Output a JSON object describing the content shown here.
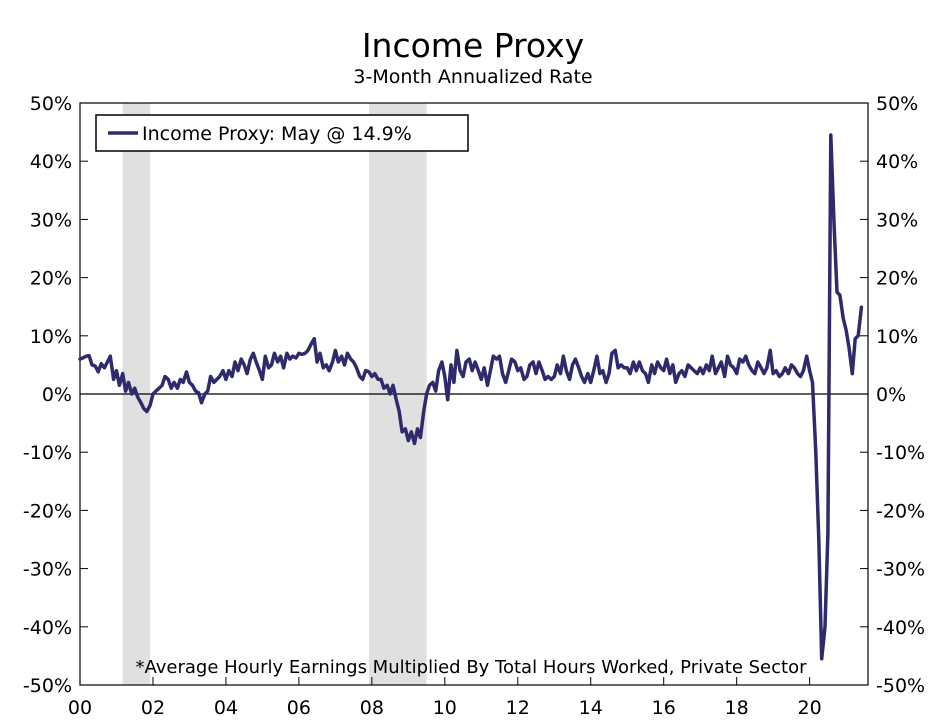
{
  "chart_data": {
    "type": "line",
    "title": "Income Proxy",
    "subtitle": "3-Month Annualized Rate",
    "footnote": "*Average Hourly Earnings Multiplied By Total Hours Worked, Private Sector",
    "legend": {
      "label": "Income Proxy: May @ 14.9%",
      "placement": "top-left"
    },
    "colors": {
      "line": "#2e2a6b",
      "recession": "#e0e0e0",
      "zero_line": "#000000"
    },
    "xlim": [
      2000,
      2021.6
    ],
    "ylim": [
      -50,
      50
    ],
    "grid": false,
    "x_ticks": [
      {
        "value": 2000,
        "label": "00"
      },
      {
        "value": 2002,
        "label": "02"
      },
      {
        "value": 2004,
        "label": "04"
      },
      {
        "value": 2006,
        "label": "06"
      },
      {
        "value": 2008,
        "label": "08"
      },
      {
        "value": 2010,
        "label": "10"
      },
      {
        "value": 2012,
        "label": "12"
      },
      {
        "value": 2014,
        "label": "14"
      },
      {
        "value": 2016,
        "label": "16"
      },
      {
        "value": 2018,
        "label": "18"
      },
      {
        "value": 2020,
        "label": "20"
      }
    ],
    "y_ticks_left": [
      {
        "value": 50,
        "label": "50%"
      },
      {
        "value": 40,
        "label": "40%"
      },
      {
        "value": 30,
        "label": "30%"
      },
      {
        "value": 20,
        "label": "20%"
      },
      {
        "value": 10,
        "label": "10%"
      },
      {
        "value": 0,
        "label": "0%"
      },
      {
        "value": -10,
        "label": "-10%"
      },
      {
        "value": -20,
        "label": "-20%"
      },
      {
        "value": -30,
        "label": "-30%"
      },
      {
        "value": -40,
        "label": "-40%"
      },
      {
        "value": -50,
        "label": "-50%"
      }
    ],
    "y_ticks_right": [
      {
        "value": 50,
        "label": "50%"
      },
      {
        "value": 40,
        "label": "40%"
      },
      {
        "value": 30,
        "label": "30%"
      },
      {
        "value": 20,
        "label": "20%"
      },
      {
        "value": 10,
        "label": "10%"
      },
      {
        "value": 0,
        "label": "0%"
      },
      {
        "value": -10,
        "label": "-10%"
      },
      {
        "value": -20,
        "label": "-20%"
      },
      {
        "value": -30,
        "label": "-30%"
      },
      {
        "value": -40,
        "label": "-40%"
      },
      {
        "value": -50,
        "label": "-50%"
      }
    ],
    "recessions": [
      {
        "start": 2001.17,
        "end": 2001.92
      },
      {
        "start": 2007.92,
        "end": 2009.5
      }
    ],
    "series": [
      {
        "name": "Income Proxy",
        "points": [
          [
            2000.0,
            6.0
          ],
          [
            2000.08,
            6.2
          ],
          [
            2000.17,
            6.5
          ],
          [
            2000.25,
            6.6
          ],
          [
            2000.33,
            5.0
          ],
          [
            2000.42,
            4.8
          ],
          [
            2000.5,
            3.8
          ],
          [
            2000.58,
            5.2
          ],
          [
            2000.67,
            4.5
          ],
          [
            2000.75,
            5.5
          ],
          [
            2000.83,
            6.5
          ],
          [
            2000.92,
            2.5
          ],
          [
            2001.0,
            4.0
          ],
          [
            2001.08,
            1.5
          ],
          [
            2001.17,
            3.5
          ],
          [
            2001.25,
            0.5
          ],
          [
            2001.33,
            2.0
          ],
          [
            2001.42,
            0.0
          ],
          [
            2001.5,
            1.0
          ],
          [
            2001.58,
            -0.5
          ],
          [
            2001.67,
            -1.5
          ],
          [
            2001.75,
            -2.5
          ],
          [
            2001.83,
            -3.0
          ],
          [
            2001.92,
            -2.0
          ],
          [
            2002.0,
            0.0
          ],
          [
            2002.08,
            0.5
          ],
          [
            2002.17,
            1.0
          ],
          [
            2002.25,
            1.5
          ],
          [
            2002.33,
            3.0
          ],
          [
            2002.42,
            2.5
          ],
          [
            2002.5,
            1.0
          ],
          [
            2002.58,
            2.0
          ],
          [
            2002.67,
            1.0
          ],
          [
            2002.75,
            2.5
          ],
          [
            2002.83,
            2.0
          ],
          [
            2002.92,
            3.8
          ],
          [
            2003.0,
            2.0
          ],
          [
            2003.08,
            1.5
          ],
          [
            2003.17,
            0.5
          ],
          [
            2003.25,
            0.2
          ],
          [
            2003.33,
            -1.5
          ],
          [
            2003.42,
            0.0
          ],
          [
            2003.5,
            0.5
          ],
          [
            2003.58,
            3.0
          ],
          [
            2003.67,
            2.0
          ],
          [
            2003.75,
            2.5
          ],
          [
            2003.83,
            3.0
          ],
          [
            2003.92,
            4.0
          ],
          [
            2004.0,
            2.5
          ],
          [
            2004.08,
            4.0
          ],
          [
            2004.17,
            3.0
          ],
          [
            2004.25,
            5.5
          ],
          [
            2004.33,
            4.0
          ],
          [
            2004.42,
            6.0
          ],
          [
            2004.5,
            5.0
          ],
          [
            2004.58,
            3.5
          ],
          [
            2004.67,
            6.0
          ],
          [
            2004.75,
            7.0
          ],
          [
            2004.83,
            5.5
          ],
          [
            2004.92,
            4.0
          ],
          [
            2005.0,
            2.5
          ],
          [
            2005.08,
            6.5
          ],
          [
            2005.17,
            4.5
          ],
          [
            2005.25,
            5.0
          ],
          [
            2005.33,
            7.0
          ],
          [
            2005.42,
            5.5
          ],
          [
            2005.5,
            6.5
          ],
          [
            2005.58,
            4.5
          ],
          [
            2005.67,
            7.0
          ],
          [
            2005.75,
            6.0
          ],
          [
            2005.83,
            6.5
          ],
          [
            2005.92,
            6.2
          ],
          [
            2006.0,
            7.0
          ],
          [
            2006.08,
            6.8
          ],
          [
            2006.17,
            7.0
          ],
          [
            2006.25,
            7.5
          ],
          [
            2006.33,
            8.5
          ],
          [
            2006.42,
            9.5
          ],
          [
            2006.5,
            5.5
          ],
          [
            2006.58,
            7.0
          ],
          [
            2006.67,
            4.5
          ],
          [
            2006.75,
            5.0
          ],
          [
            2006.83,
            4.0
          ],
          [
            2006.92,
            5.5
          ],
          [
            2007.0,
            7.5
          ],
          [
            2007.08,
            5.5
          ],
          [
            2007.17,
            6.5
          ],
          [
            2007.25,
            5.0
          ],
          [
            2007.33,
            7.0
          ],
          [
            2007.42,
            6.0
          ],
          [
            2007.5,
            5.5
          ],
          [
            2007.58,
            4.5
          ],
          [
            2007.67,
            3.0
          ],
          [
            2007.75,
            2.5
          ],
          [
            2007.83,
            4.0
          ],
          [
            2007.92,
            3.8
          ],
          [
            2008.0,
            3.0
          ],
          [
            2008.08,
            3.5
          ],
          [
            2008.17,
            2.5
          ],
          [
            2008.25,
            2.5
          ],
          [
            2008.33,
            1.0
          ],
          [
            2008.42,
            1.5
          ],
          [
            2008.5,
            0.0
          ],
          [
            2008.58,
            1.5
          ],
          [
            2008.67,
            -1.0
          ],
          [
            2008.75,
            -3.0
          ],
          [
            2008.83,
            -6.5
          ],
          [
            2008.92,
            -6.0
          ],
          [
            2009.0,
            -8.0
          ],
          [
            2009.08,
            -6.5
          ],
          [
            2009.17,
            -8.5
          ],
          [
            2009.25,
            -6.0
          ],
          [
            2009.33,
            -7.5
          ],
          [
            2009.42,
            -3.0
          ],
          [
            2009.5,
            0.0
          ],
          [
            2009.58,
            1.5
          ],
          [
            2009.67,
            2.0
          ],
          [
            2009.75,
            0.5
          ],
          [
            2009.83,
            4.0
          ],
          [
            2009.92,
            5.5
          ],
          [
            2010.0,
            3.0
          ],
          [
            2010.08,
            -1.0
          ],
          [
            2010.17,
            5.0
          ],
          [
            2010.25,
            2.0
          ],
          [
            2010.33,
            7.5
          ],
          [
            2010.42,
            4.0
          ],
          [
            2010.5,
            3.0
          ],
          [
            2010.58,
            5.5
          ],
          [
            2010.67,
            6.0
          ],
          [
            2010.75,
            4.0
          ],
          [
            2010.83,
            5.5
          ],
          [
            2010.92,
            4.0
          ],
          [
            2011.0,
            2.5
          ],
          [
            2011.08,
            4.5
          ],
          [
            2011.17,
            1.5
          ],
          [
            2011.25,
            4.0
          ],
          [
            2011.33,
            6.5
          ],
          [
            2011.42,
            6.0
          ],
          [
            2011.5,
            6.5
          ],
          [
            2011.58,
            3.5
          ],
          [
            2011.67,
            2.0
          ],
          [
            2011.75,
            4.0
          ],
          [
            2011.83,
            6.0
          ],
          [
            2011.92,
            5.5
          ],
          [
            2012.0,
            4.0
          ],
          [
            2012.08,
            4.5
          ],
          [
            2012.17,
            2.5
          ],
          [
            2012.25,
            3.0
          ],
          [
            2012.33,
            5.0
          ],
          [
            2012.42,
            5.5
          ],
          [
            2012.5,
            3.5
          ],
          [
            2012.58,
            5.5
          ],
          [
            2012.67,
            4.0
          ],
          [
            2012.75,
            2.5
          ],
          [
            2012.83,
            3.0
          ],
          [
            2012.92,
            2.5
          ],
          [
            2013.0,
            3.0
          ],
          [
            2013.08,
            5.0
          ],
          [
            2013.17,
            3.5
          ],
          [
            2013.25,
            6.5
          ],
          [
            2013.33,
            4.0
          ],
          [
            2013.42,
            2.5
          ],
          [
            2013.5,
            5.0
          ],
          [
            2013.58,
            6.0
          ],
          [
            2013.67,
            4.5
          ],
          [
            2013.75,
            3.0
          ],
          [
            2013.83,
            2.0
          ],
          [
            2013.92,
            3.5
          ],
          [
            2014.0,
            2.0
          ],
          [
            2014.08,
            4.0
          ],
          [
            2014.17,
            6.5
          ],
          [
            2014.25,
            3.5
          ],
          [
            2014.33,
            4.0
          ],
          [
            2014.42,
            2.0
          ],
          [
            2014.5,
            3.5
          ],
          [
            2014.58,
            7.0
          ],
          [
            2014.67,
            7.5
          ],
          [
            2014.75,
            4.5
          ],
          [
            2014.83,
            5.0
          ],
          [
            2014.92,
            4.5
          ],
          [
            2015.0,
            4.5
          ],
          [
            2015.08,
            3.5
          ],
          [
            2015.17,
            5.5
          ],
          [
            2015.25,
            4.0
          ],
          [
            2015.33,
            5.5
          ],
          [
            2015.42,
            4.0
          ],
          [
            2015.5,
            3.5
          ],
          [
            2015.58,
            2.0
          ],
          [
            2015.67,
            5.0
          ],
          [
            2015.75,
            3.5
          ],
          [
            2015.83,
            5.5
          ],
          [
            2015.92,
            4.5
          ],
          [
            2016.0,
            4.0
          ],
          [
            2016.08,
            6.0
          ],
          [
            2016.17,
            3.5
          ],
          [
            2016.25,
            5.0
          ],
          [
            2016.33,
            2.0
          ],
          [
            2016.42,
            3.5
          ],
          [
            2016.5,
            4.0
          ],
          [
            2016.58,
            3.0
          ],
          [
            2016.67,
            5.0
          ],
          [
            2016.75,
            4.5
          ],
          [
            2016.83,
            4.0
          ],
          [
            2016.92,
            3.5
          ],
          [
            2017.0,
            4.5
          ],
          [
            2017.08,
            3.5
          ],
          [
            2017.17,
            5.0
          ],
          [
            2017.25,
            4.0
          ],
          [
            2017.33,
            6.5
          ],
          [
            2017.42,
            3.5
          ],
          [
            2017.5,
            4.5
          ],
          [
            2017.58,
            5.5
          ],
          [
            2017.67,
            3.0
          ],
          [
            2017.75,
            6.5
          ],
          [
            2017.83,
            5.0
          ],
          [
            2017.92,
            4.5
          ],
          [
            2018.0,
            3.5
          ],
          [
            2018.08,
            6.0
          ],
          [
            2018.17,
            5.5
          ],
          [
            2018.25,
            6.5
          ],
          [
            2018.33,
            5.0
          ],
          [
            2018.42,
            4.0
          ],
          [
            2018.5,
            3.5
          ],
          [
            2018.58,
            5.5
          ],
          [
            2018.67,
            4.5
          ],
          [
            2018.75,
            3.5
          ],
          [
            2018.83,
            4.5
          ],
          [
            2018.92,
            7.5
          ],
          [
            2019.0,
            3.5
          ],
          [
            2019.08,
            4.0
          ],
          [
            2019.17,
            3.0
          ],
          [
            2019.25,
            3.5
          ],
          [
            2019.33,
            4.5
          ],
          [
            2019.42,
            3.5
          ],
          [
            2019.5,
            5.0
          ],
          [
            2019.58,
            4.5
          ],
          [
            2019.67,
            3.5
          ],
          [
            2019.75,
            3.0
          ],
          [
            2019.83,
            4.0
          ],
          [
            2019.92,
            6.5
          ],
          [
            2020.0,
            4.0
          ],
          [
            2020.08,
            2.0
          ],
          [
            2020.17,
            -10.0
          ],
          [
            2020.25,
            -25.0
          ],
          [
            2020.33,
            -45.5
          ],
          [
            2020.42,
            -40.0
          ],
          [
            2020.5,
            -24.0
          ],
          [
            2020.58,
            44.5
          ],
          [
            2020.67,
            29.0
          ],
          [
            2020.75,
            17.5
          ],
          [
            2020.83,
            17.0
          ],
          [
            2020.92,
            13.0
          ],
          [
            2021.0,
            11.0
          ],
          [
            2021.08,
            8.0
          ],
          [
            2021.17,
            3.5
          ],
          [
            2021.25,
            9.5
          ],
          [
            2021.33,
            10.0
          ],
          [
            2021.42,
            14.9
          ]
        ]
      }
    ]
  }
}
